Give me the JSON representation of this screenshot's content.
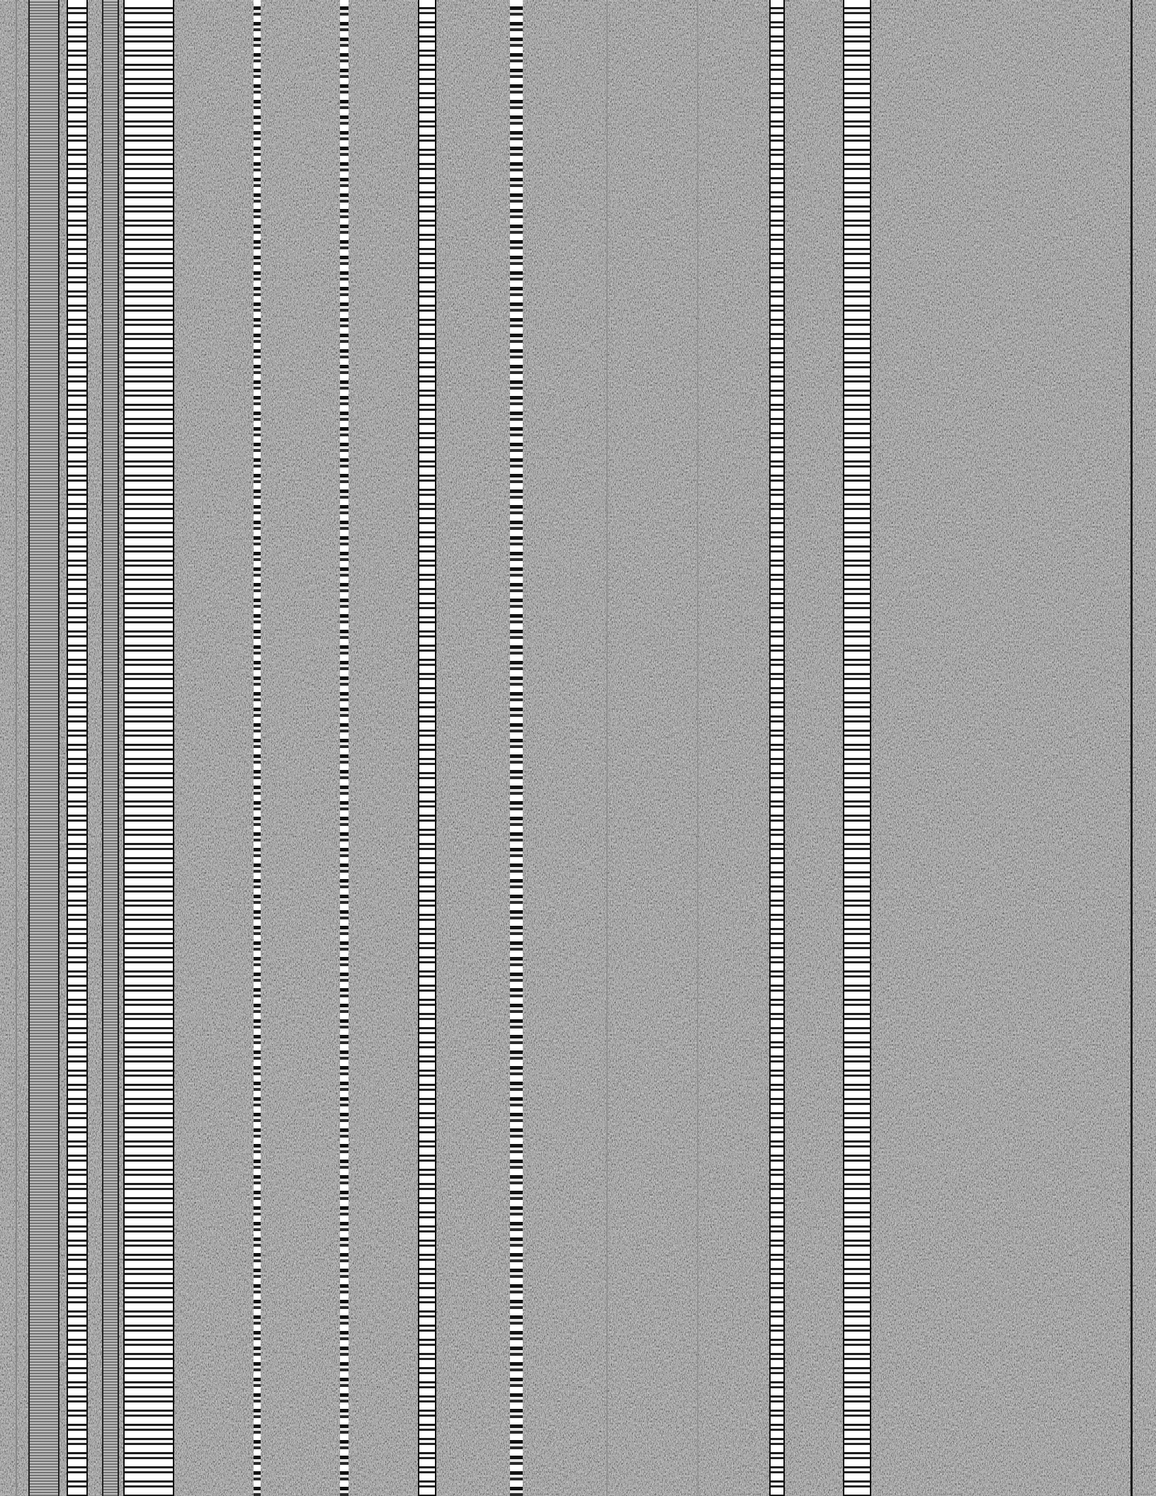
{
  "image": {
    "description_free": true
  },
  "colors": {
    "background": "#6e6e6e",
    "noise_dark": "#000000",
    "noise_light": "#ffffff",
    "band_light": "#ffffff",
    "band_dark": "#111111"
  }
}
